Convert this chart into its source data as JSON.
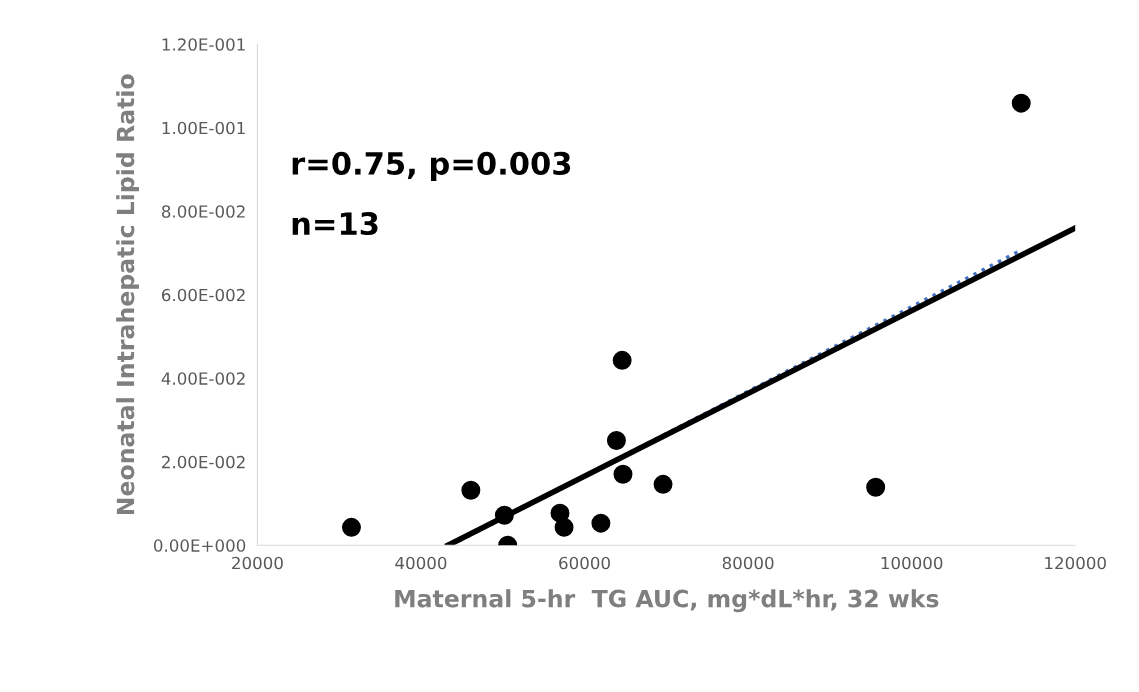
{
  "chart_data": {
    "type": "scatter",
    "xlabel": "Maternal 5-hr  TG AUC, mg*dL*hr, 32 wks",
    "ylabel": "Neonatal Intrahepatic Lipid Ratio",
    "annotations": [
      "r=0.75, p=0.003",
      "n=13"
    ],
    "xlim": [
      20000,
      120000
    ],
    "xticks": [
      20000,
      40000,
      60000,
      80000,
      100000,
      120000
    ],
    "ylim": [
      0,
      0.12
    ],
    "yticks": [
      {
        "value": 0,
        "label": "0.00E+000"
      },
      {
        "value": 0.02,
        "label": "2.00E-002"
      },
      {
        "value": 0.04,
        "label": "4.00E-002"
      },
      {
        "value": 0.06,
        "label": "6.00E-002"
      },
      {
        "value": 0.08,
        "label": "8.00E-002"
      },
      {
        "value": 0.1,
        "label": "1.00E-001"
      },
      {
        "value": 0.12,
        "label": "1.20E-001"
      }
    ],
    "grid": false,
    "marker": "circle",
    "series": [
      {
        "color": "#000000",
        "x": [
          31500,
          46100,
          50200,
          50600,
          57000,
          57500,
          62000,
          63900,
          64600,
          64700,
          69600,
          95600,
          113400
        ],
        "values": [
          0.0043,
          0.0132,
          0.0072,
          0.0,
          0.0077,
          0.0043,
          0.0053,
          0.0251,
          0.0443,
          0.017,
          0.0146,
          0.0139,
          0.1059
        ]
      },
      {
        "type": "line",
        "color": "#4472c4",
        "line_style": "dotted",
        "marker": "none",
        "x": [
          43600,
          113000
        ],
        "values": [
          0.0,
          0.0703
        ]
      },
      {
        "type": "line",
        "color": "#000000",
        "line_style": "solid",
        "marker": "none",
        "x": [
          43300,
          120000
        ],
        "values": [
          0.0,
          0.076
        ]
      }
    ]
  }
}
